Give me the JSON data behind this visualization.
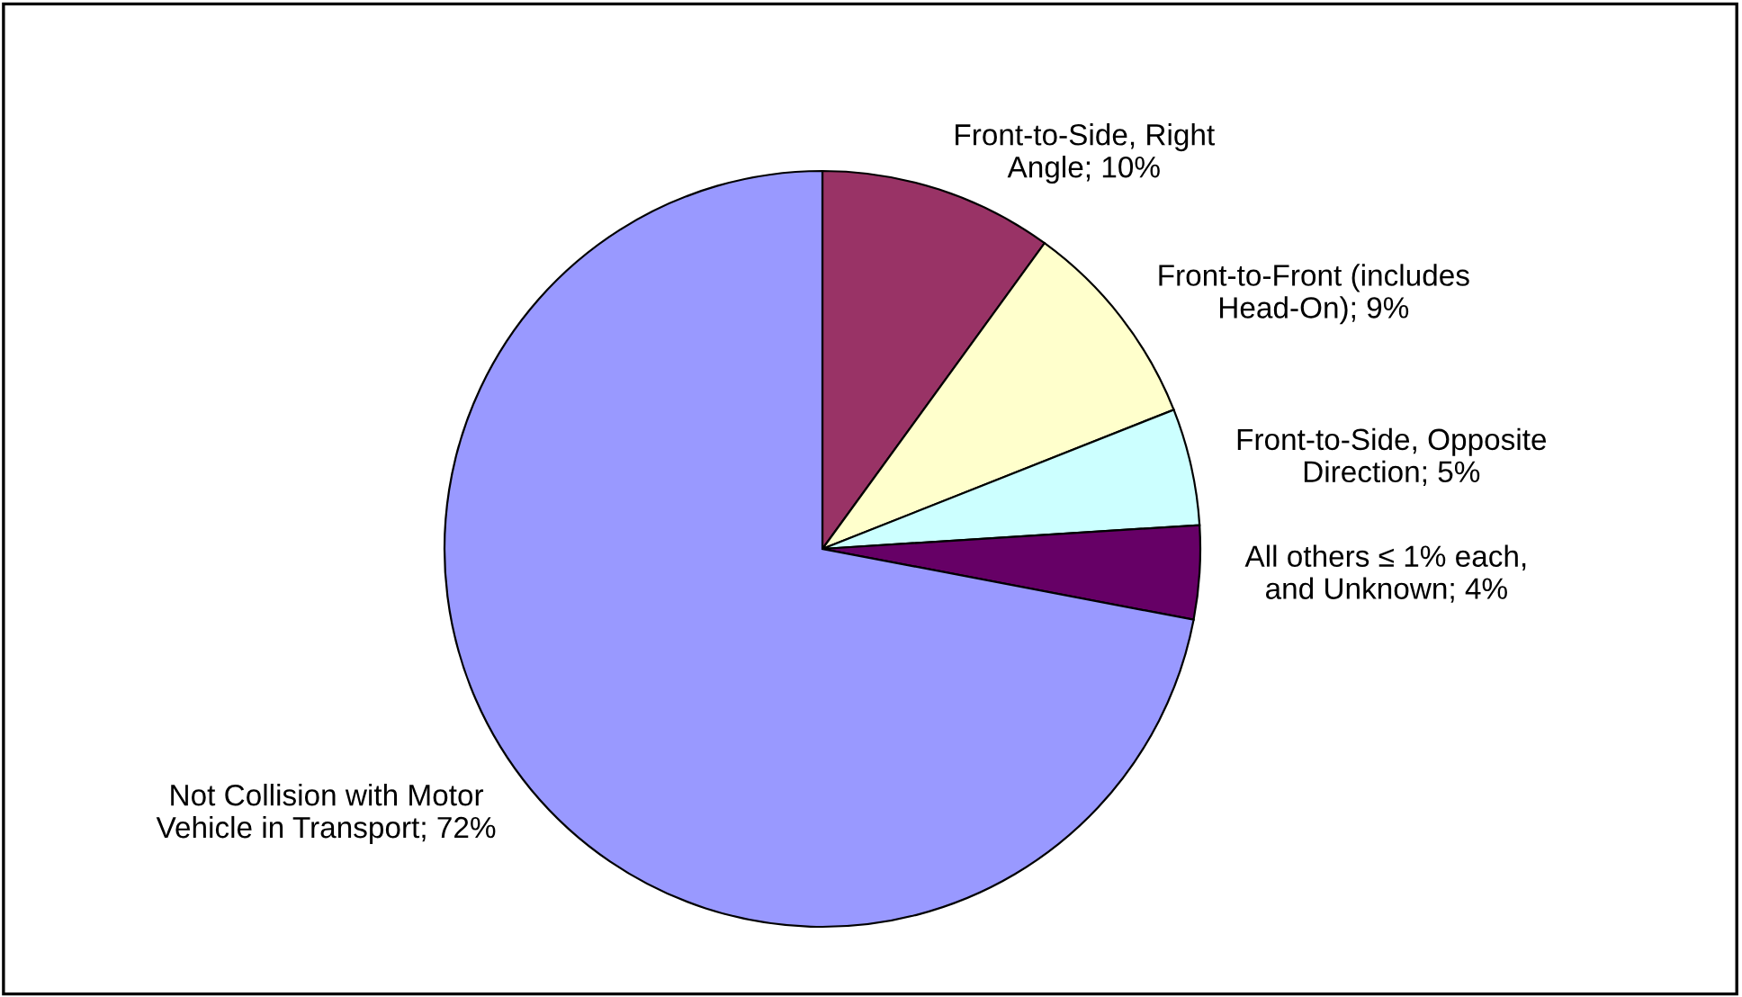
{
  "chart_data": {
    "type": "pie",
    "categories": [
      "Front-to-Side, Right Angle",
      "Front-to-Front (includes Head-On)",
      "Front-to-Side, Opposite Direction",
      "All others ≤ 1% each, and Unknown",
      "Not Collision with Motor Vehicle in Transport"
    ],
    "values": [
      10,
      9,
      5,
      4,
      72
    ],
    "value_labels": [
      "10%",
      "9%",
      "5%",
      "4%",
      "72%"
    ],
    "colors": [
      "#993366",
      "#ffffcc",
      "#ccffff",
      "#660066",
      "#9999ff"
    ],
    "legend": false
  }
}
